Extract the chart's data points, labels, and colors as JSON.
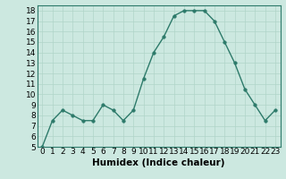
{
  "x": [
    0,
    1,
    2,
    3,
    4,
    5,
    6,
    7,
    8,
    9,
    10,
    11,
    12,
    13,
    14,
    15,
    16,
    17,
    18,
    19,
    20,
    21,
    22,
    23
  ],
  "y": [
    5,
    7.5,
    8.5,
    8,
    7.5,
    7.5,
    9,
    8.5,
    7.5,
    8.5,
    11.5,
    14,
    15.5,
    17.5,
    18,
    18,
    18,
    17,
    15,
    13,
    10.5,
    9,
    7.5,
    8.5
  ],
  "line_color": "#2d7a6a",
  "marker_color": "#2d7a6a",
  "bg_color": "#cce8e0",
  "grid_color": "#b0d4c8",
  "xlabel": "Humidex (Indice chaleur)",
  "ylim": [
    5,
    18.5
  ],
  "xlim": [
    -0.5,
    23.5
  ],
  "yticks": [
    5,
    6,
    7,
    8,
    9,
    10,
    11,
    12,
    13,
    14,
    15,
    16,
    17,
    18
  ],
  "xticks": [
    0,
    1,
    2,
    3,
    4,
    5,
    6,
    7,
    8,
    9,
    10,
    11,
    12,
    13,
    14,
    15,
    16,
    17,
    18,
    19,
    20,
    21,
    22,
    23
  ],
  "tick_labelsize": 6.5,
  "xlabel_fontsize": 7.5,
  "line_width": 1.0,
  "marker_size": 2.5
}
